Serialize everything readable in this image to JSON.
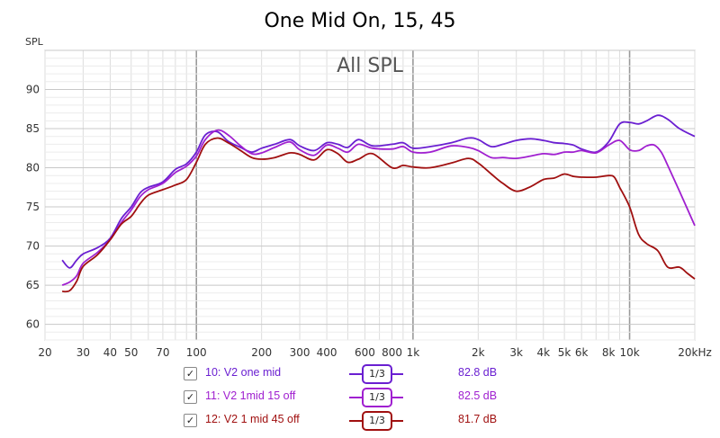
{
  "chart_data": {
    "type": "line",
    "title": "One Mid On, 15, 45",
    "inner_label": "All SPL",
    "ylabel": "SPL",
    "xscale": "log",
    "xlim": [
      20,
      20000
    ],
    "ylim": [
      58,
      95
    ],
    "grid": true,
    "x_tick_labels": [
      "20",
      "30",
      "40",
      "50",
      "70",
      "100",
      "200",
      "300",
      "400",
      "600",
      "800",
      "1k",
      "2k",
      "3k",
      "4k",
      "5k",
      "6k",
      "8k",
      "10k",
      "20kHz"
    ],
    "x_tick_values": [
      20,
      30,
      40,
      50,
      70,
      100,
      200,
      300,
      400,
      600,
      800,
      1000,
      2000,
      3000,
      4000,
      5000,
      6000,
      8000,
      10000,
      20000
    ],
    "y_ticks": [
      60,
      65,
      70,
      75,
      80,
      85,
      90
    ],
    "series": [
      {
        "name": "10: V2 one mid",
        "color": "#6a1fd1",
        "smoothing": "1/3",
        "level": "82.8 dB",
        "checked": true,
        "points": [
          [
            24,
            68.2
          ],
          [
            26,
            67.2
          ],
          [
            28,
            68.2
          ],
          [
            30,
            69.0
          ],
          [
            35,
            69.8
          ],
          [
            40,
            71.0
          ],
          [
            45,
            73.5
          ],
          [
            50,
            75.0
          ],
          [
            55,
            76.8
          ],
          [
            60,
            77.5
          ],
          [
            70,
            78.2
          ],
          [
            80,
            79.8
          ],
          [
            90,
            80.5
          ],
          [
            100,
            82.0
          ],
          [
            110,
            84.2
          ],
          [
            125,
            84.6
          ],
          [
            140,
            83.4
          ],
          [
            160,
            82.6
          ],
          [
            180,
            82.0
          ],
          [
            200,
            82.5
          ],
          [
            230,
            83.0
          ],
          [
            270,
            83.6
          ],
          [
            300,
            82.8
          ],
          [
            350,
            82.2
          ],
          [
            400,
            83.2
          ],
          [
            450,
            83.0
          ],
          [
            500,
            82.6
          ],
          [
            560,
            83.6
          ],
          [
            650,
            82.8
          ],
          [
            800,
            83.0
          ],
          [
            900,
            83.2
          ],
          [
            1000,
            82.5
          ],
          [
            1200,
            82.7
          ],
          [
            1500,
            83.2
          ],
          [
            1800,
            83.8
          ],
          [
            2000,
            83.6
          ],
          [
            2300,
            82.7
          ],
          [
            2600,
            83.0
          ],
          [
            3000,
            83.5
          ],
          [
            3500,
            83.7
          ],
          [
            4000,
            83.5
          ],
          [
            4500,
            83.2
          ],
          [
            5000,
            83.1
          ],
          [
            5500,
            82.9
          ],
          [
            6000,
            82.4
          ],
          [
            7000,
            82.0
          ],
          [
            8000,
            83.3
          ],
          [
            9000,
            85.6
          ],
          [
            10000,
            85.8
          ],
          [
            11000,
            85.6
          ],
          [
            12000,
            86.0
          ],
          [
            13500,
            86.7
          ],
          [
            15000,
            86.2
          ],
          [
            17000,
            85.0
          ],
          [
            20000,
            84.0
          ]
        ]
      },
      {
        "name": "11: V2 1mid 15 off",
        "color": "#a020d0",
        "smoothing": "1/3",
        "level": "82.5 dB",
        "checked": true,
        "points": [
          [
            24,
            65.0
          ],
          [
            26,
            65.4
          ],
          [
            28,
            66.2
          ],
          [
            30,
            67.8
          ],
          [
            35,
            69.2
          ],
          [
            40,
            70.8
          ],
          [
            45,
            73.0
          ],
          [
            50,
            74.6
          ],
          [
            55,
            76.3
          ],
          [
            60,
            77.2
          ],
          [
            70,
            78.0
          ],
          [
            80,
            79.4
          ],
          [
            90,
            80.2
          ],
          [
            100,
            81.5
          ],
          [
            110,
            83.6
          ],
          [
            125,
            84.8
          ],
          [
            140,
            84.2
          ],
          [
            160,
            82.8
          ],
          [
            180,
            81.8
          ],
          [
            200,
            81.9
          ],
          [
            230,
            82.6
          ],
          [
            270,
            83.3
          ],
          [
            300,
            82.3
          ],
          [
            350,
            81.6
          ],
          [
            400,
            82.9
          ],
          [
            450,
            82.5
          ],
          [
            500,
            82.0
          ],
          [
            560,
            83.0
          ],
          [
            650,
            82.5
          ],
          [
            800,
            82.4
          ],
          [
            900,
            82.7
          ],
          [
            1000,
            82.0
          ],
          [
            1200,
            82.0
          ],
          [
            1500,
            82.8
          ],
          [
            1800,
            82.6
          ],
          [
            2000,
            82.2
          ],
          [
            2300,
            81.3
          ],
          [
            2600,
            81.3
          ],
          [
            3000,
            81.2
          ],
          [
            3500,
            81.5
          ],
          [
            4000,
            81.8
          ],
          [
            4500,
            81.7
          ],
          [
            5000,
            82.0
          ],
          [
            5500,
            82.0
          ],
          [
            6000,
            82.2
          ],
          [
            7000,
            81.9
          ],
          [
            8000,
            82.9
          ],
          [
            9000,
            83.5
          ],
          [
            10000,
            82.3
          ],
          [
            11000,
            82.2
          ],
          [
            12000,
            82.8
          ],
          [
            13000,
            82.9
          ],
          [
            14000,
            82.0
          ],
          [
            15000,
            80.3
          ],
          [
            17000,
            77.0
          ],
          [
            20000,
            72.6
          ]
        ]
      },
      {
        "name": "12: V2 1 mid 45 off",
        "color": "#a01010",
        "smoothing": "1/3",
        "level": "81.7 dB",
        "checked": true,
        "points": [
          [
            24,
            64.2
          ],
          [
            26,
            64.3
          ],
          [
            28,
            65.5
          ],
          [
            30,
            67.4
          ],
          [
            35,
            68.9
          ],
          [
            40,
            70.8
          ],
          [
            45,
            72.8
          ],
          [
            50,
            73.8
          ],
          [
            55,
            75.4
          ],
          [
            60,
            76.5
          ],
          [
            70,
            77.2
          ],
          [
            80,
            77.8
          ],
          [
            90,
            78.5
          ],
          [
            100,
            80.7
          ],
          [
            110,
            83.0
          ],
          [
            125,
            83.8
          ],
          [
            140,
            83.2
          ],
          [
            160,
            82.2
          ],
          [
            180,
            81.3
          ],
          [
            200,
            81.1
          ],
          [
            230,
            81.3
          ],
          [
            270,
            81.9
          ],
          [
            300,
            81.7
          ],
          [
            350,
            81.0
          ],
          [
            400,
            82.3
          ],
          [
            450,
            81.8
          ],
          [
            500,
            80.7
          ],
          [
            560,
            81.1
          ],
          [
            650,
            81.8
          ],
          [
            800,
            80.0
          ],
          [
            900,
            80.3
          ],
          [
            1000,
            80.1
          ],
          [
            1200,
            80.0
          ],
          [
            1500,
            80.6
          ],
          [
            1800,
            81.2
          ],
          [
            2000,
            80.6
          ],
          [
            2300,
            79.2
          ],
          [
            2600,
            78.0
          ],
          [
            3000,
            77.0
          ],
          [
            3500,
            77.6
          ],
          [
            4000,
            78.5
          ],
          [
            4500,
            78.7
          ],
          [
            5000,
            79.2
          ],
          [
            5500,
            78.9
          ],
          [
            6000,
            78.8
          ],
          [
            7000,
            78.8
          ],
          [
            8000,
            79.0
          ],
          [
            8500,
            78.8
          ],
          [
            9000,
            77.5
          ],
          [
            10000,
            75.0
          ],
          [
            11000,
            71.5
          ],
          [
            12000,
            70.3
          ],
          [
            13500,
            69.4
          ],
          [
            15000,
            67.3
          ],
          [
            17000,
            67.3
          ],
          [
            18500,
            66.5
          ],
          [
            20000,
            65.8
          ]
        ]
      }
    ]
  }
}
